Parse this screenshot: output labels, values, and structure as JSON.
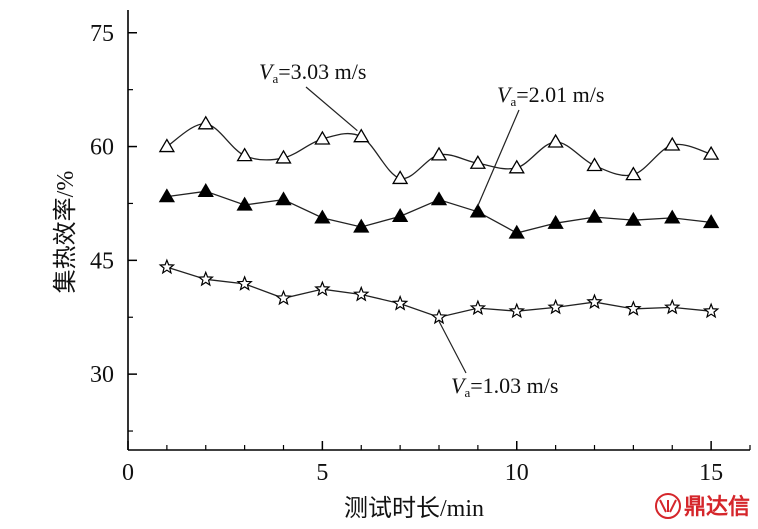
{
  "chart_data": {
    "type": "line",
    "xlabel": "测试时长/min",
    "ylabel": "集热效率/%",
    "xlim": [
      0,
      16
    ],
    "ylim": [
      20,
      78
    ],
    "xticks": [
      0,
      5,
      10,
      15
    ],
    "yticks": [
      30,
      45,
      60,
      75
    ],
    "grid": false,
    "x": [
      1,
      2,
      3,
      4,
      5,
      6,
      7,
      8,
      9,
      10,
      11,
      12,
      13,
      14,
      15
    ],
    "series": [
      {
        "name": "Va=3.03 m/s",
        "marker": "open-triangle",
        "smooth": true,
        "values": [
          60.0,
          63.0,
          58.8,
          58.5,
          61.0,
          61.3,
          55.8,
          58.9,
          57.8,
          57.2,
          60.6,
          57.5,
          56.3,
          60.2,
          59.0
        ]
      },
      {
        "name": "Va=2.01 m/s",
        "marker": "filled-triangle",
        "smooth": false,
        "values": [
          53.4,
          54.1,
          52.3,
          53.0,
          50.6,
          49.4,
          50.8,
          53.0,
          51.4,
          48.6,
          49.9,
          50.7,
          50.3,
          50.6,
          50.0
        ]
      },
      {
        "name": "Va=1.03 m/s",
        "marker": "open-star",
        "smooth": false,
        "values": [
          44.1,
          42.5,
          41.9,
          40.0,
          41.2,
          40.5,
          39.3,
          37.5,
          38.7,
          38.3,
          38.8,
          39.5,
          38.6,
          38.8,
          38.3
        ]
      }
    ],
    "annotations": [
      {
        "series": "Va=3.03 m/s",
        "var": "V",
        "sub": "a",
        "rest": "=3.03 m/s"
      },
      {
        "series": "Va=2.01 m/s",
        "var": "V",
        "sub": "a",
        "rest": "=2.01 m/s"
      },
      {
        "series": "Va=1.03 m/s",
        "var": "V",
        "sub": "a",
        "rest": "=1.03 m/s"
      }
    ],
    "watermark": "鼎达信"
  }
}
